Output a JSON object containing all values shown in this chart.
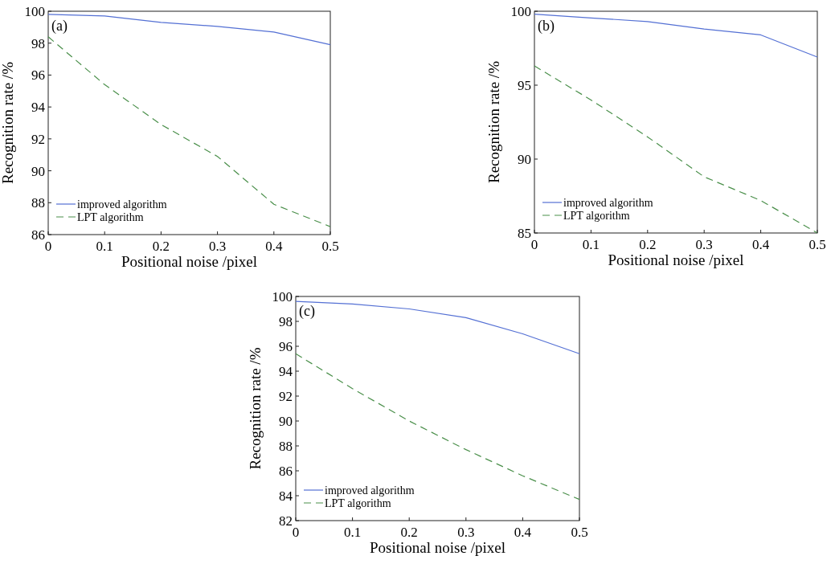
{
  "chart_data": [
    {
      "type": "line",
      "annotations": [
        "(a)"
      ],
      "xlabel": "Positional noise /pixel",
      "ylabel": "Recognition rate /%",
      "x": [
        0,
        0.1,
        0.2,
        0.3,
        0.4,
        0.5
      ],
      "xlim": [
        0,
        0.5
      ],
      "xticks": [
        0,
        0.1,
        0.2,
        0.3,
        0.4,
        0.5
      ],
      "ylim": [
        86,
        100
      ],
      "yticks": [
        86,
        88,
        90,
        92,
        94,
        96,
        98,
        100
      ],
      "legend": "bottom left",
      "series": [
        {
          "name": "improved algorithm",
          "color": "#5470d4",
          "line_style": "solid",
          "values": [
            99.8,
            99.7,
            99.3,
            99.05,
            98.7,
            97.9
          ]
        },
        {
          "name": "LPT algorithm",
          "color": "#4a8f4a",
          "line_style": "dashed",
          "values": [
            98.4,
            95.4,
            92.9,
            90.9,
            87.9,
            86.5
          ]
        }
      ]
    },
    {
      "type": "line",
      "annotations": [
        "(b)"
      ],
      "xlabel": "Positional noise /pixel",
      "ylabel": "Recognition rate /%",
      "x": [
        0,
        0.1,
        0.2,
        0.3,
        0.4,
        0.5
      ],
      "xlim": [
        0,
        0.5
      ],
      "xticks": [
        0,
        0.1,
        0.2,
        0.3,
        0.4,
        0.5
      ],
      "ylim": [
        85,
        100
      ],
      "yticks": [
        85,
        90,
        95,
        100
      ],
      "legend": "bottom left",
      "series": [
        {
          "name": "improved algorithm",
          "color": "#5470d4",
          "line_style": "solid",
          "values": [
            99.8,
            99.55,
            99.3,
            98.8,
            98.4,
            96.9
          ]
        },
        {
          "name": "LPT algorithm",
          "color": "#4a8f4a",
          "line_style": "dashed",
          "values": [
            96.3,
            94.0,
            91.5,
            88.8,
            87.2,
            85.0
          ]
        }
      ]
    },
    {
      "type": "line",
      "annotations": [
        "(c)"
      ],
      "xlabel": "Positional noise /pixel",
      "ylabel": "Recognition rate /%",
      "x": [
        0,
        0.1,
        0.2,
        0.3,
        0.4,
        0.5
      ],
      "xlim": [
        0,
        0.5
      ],
      "xticks": [
        0,
        0.1,
        0.2,
        0.3,
        0.4,
        0.5
      ],
      "ylim": [
        82,
        100
      ],
      "yticks": [
        82,
        84,
        86,
        88,
        90,
        92,
        94,
        96,
        98,
        100
      ],
      "legend": "bottom left",
      "series": [
        {
          "name": "improved algorithm",
          "color": "#5470d4",
          "line_style": "solid",
          "values": [
            99.6,
            99.4,
            99.0,
            98.3,
            97.0,
            95.4
          ]
        },
        {
          "name": "LPT algorithm",
          "color": "#4a8f4a",
          "line_style": "dashed",
          "values": [
            95.4,
            92.6,
            90.0,
            87.7,
            85.6,
            83.7
          ]
        }
      ]
    }
  ]
}
